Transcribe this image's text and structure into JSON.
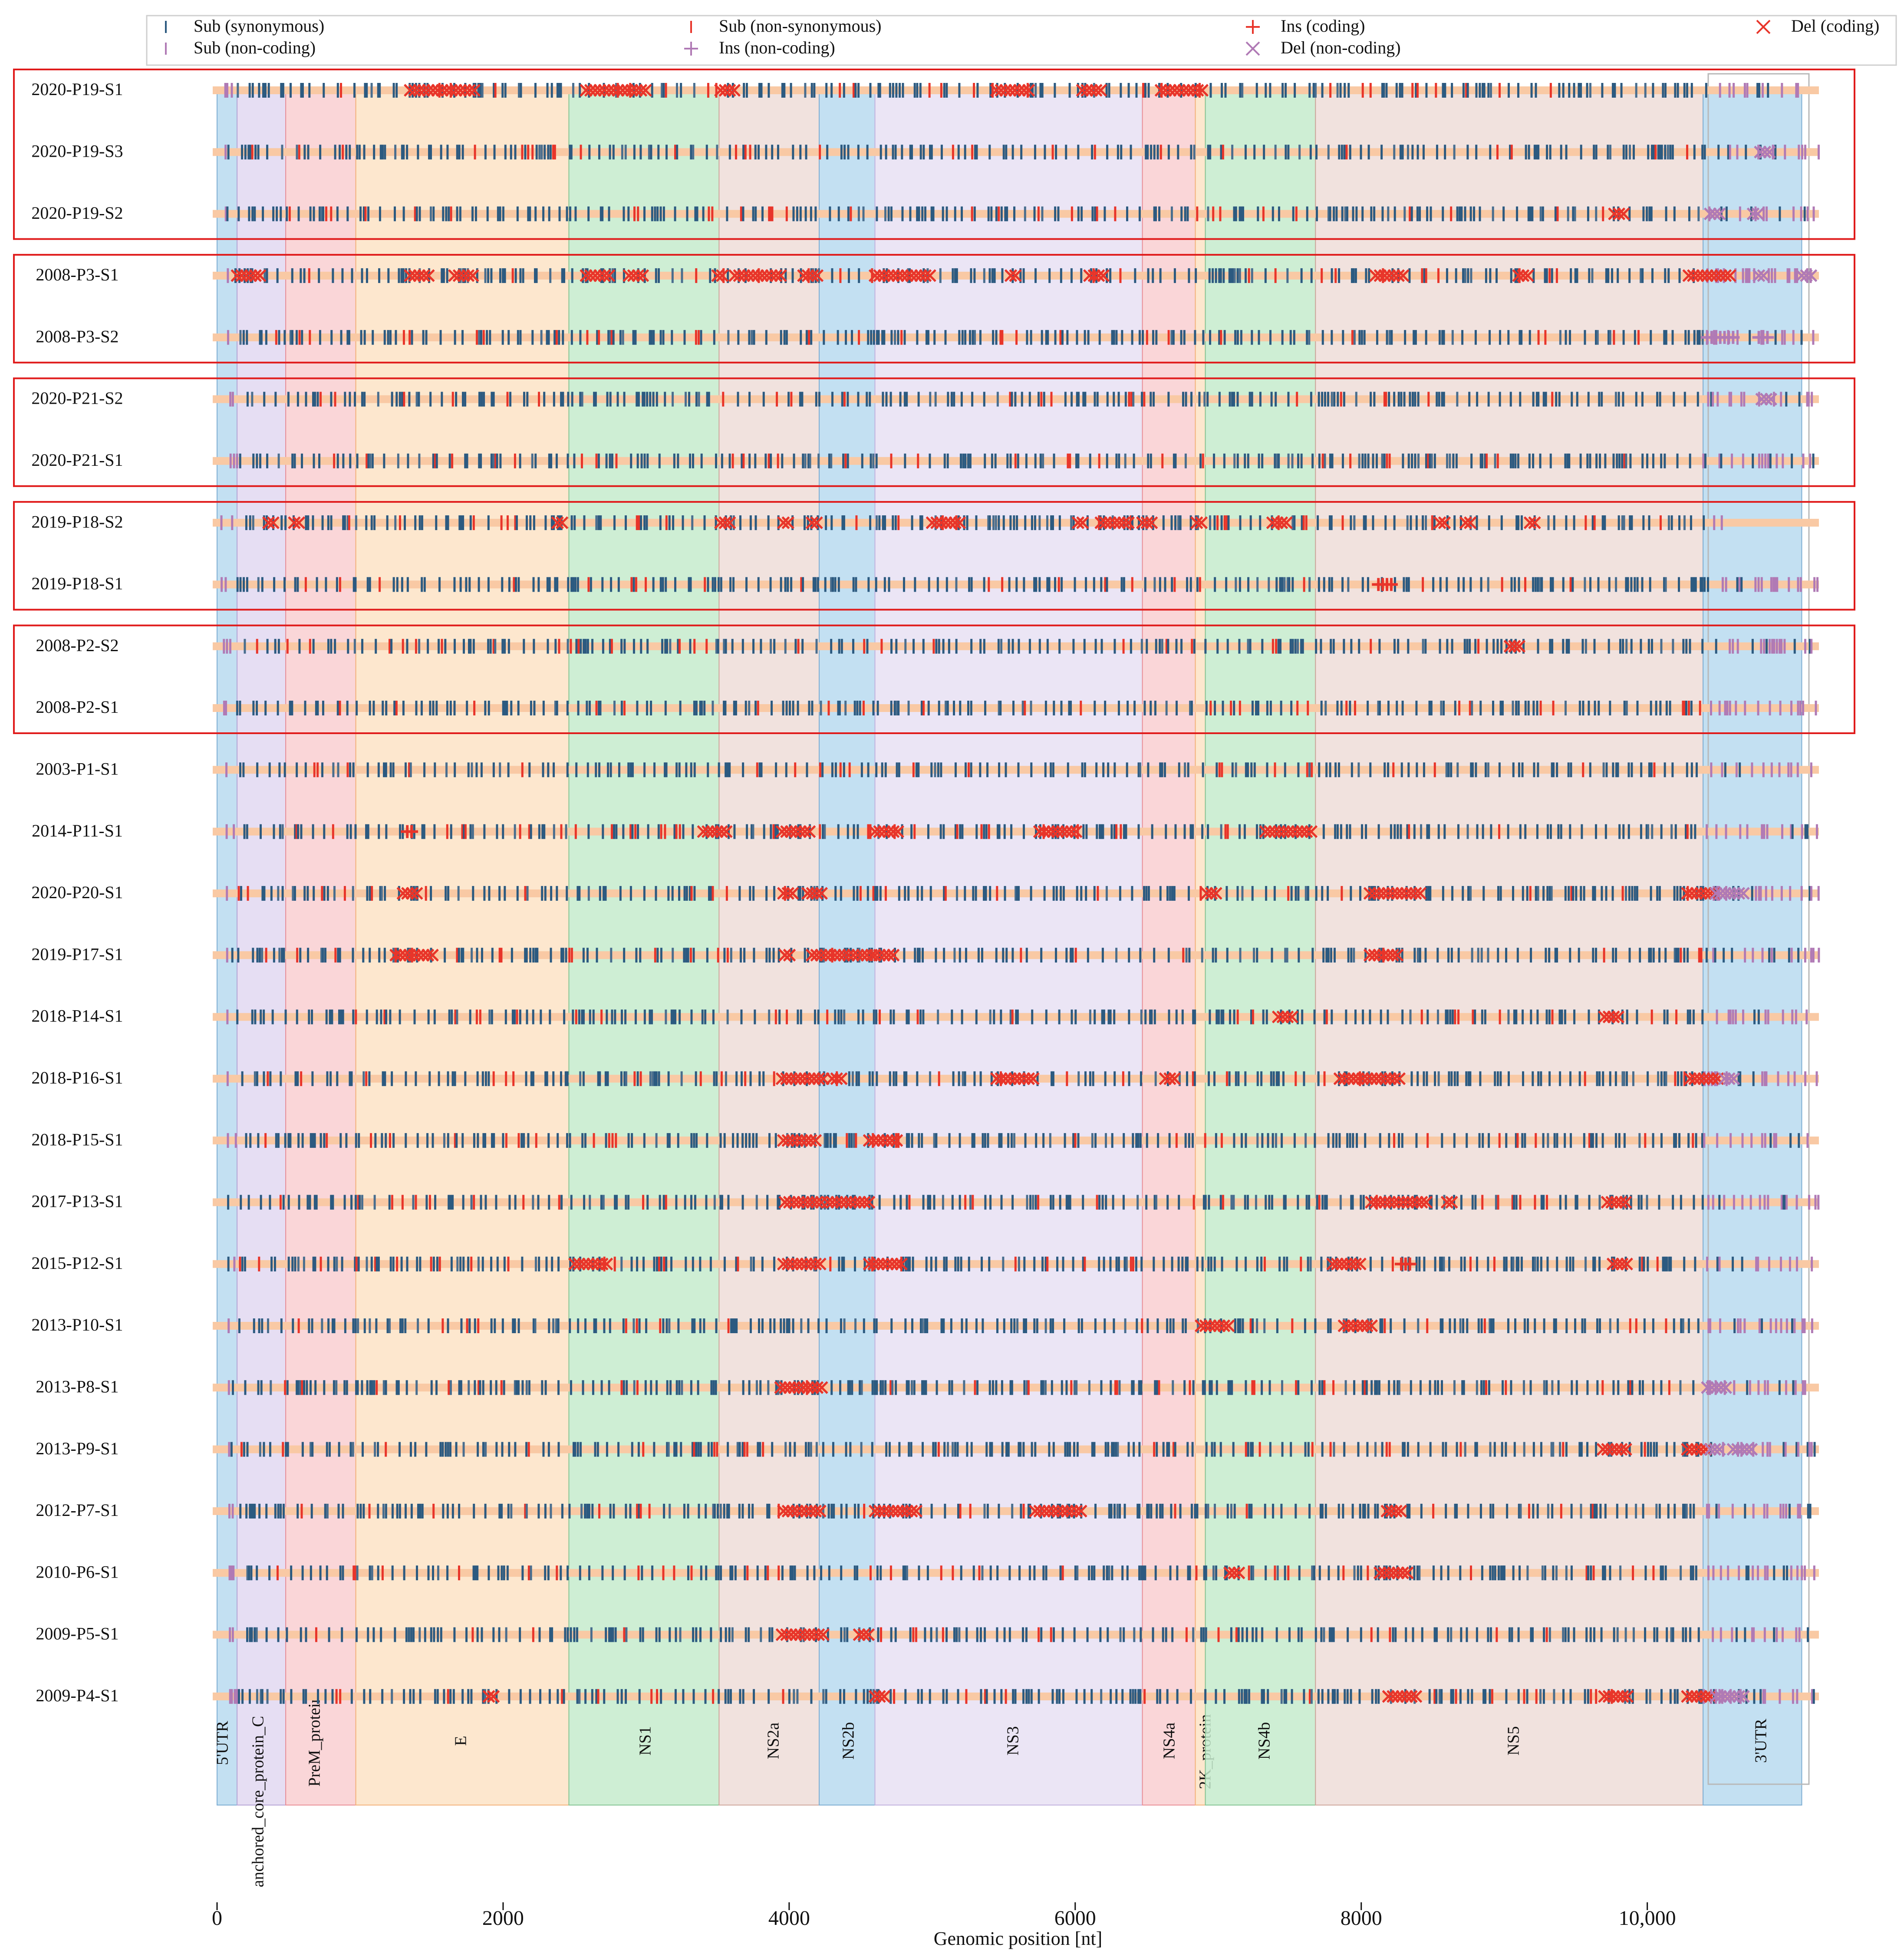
{
  "chart_data": {
    "type": "genome-variant-track-plot",
    "xlabel": "Genomic position [nt]",
    "xlim": [
      0,
      11200
    ],
    "x_ticks": [
      0,
      2000,
      4000,
      6000,
      8000,
      10000
    ],
    "x_tick_labels": [
      "0",
      "2000",
      "4000",
      "6000",
      "8000",
      "10,000"
    ],
    "legend": {
      "position": "top",
      "entries": [
        {
          "label": "Sub (synonymous)",
          "marker": "|",
          "color": "#2c5a80"
        },
        {
          "label": "Sub (non-synonymous)",
          "marker": "|",
          "color": "#e8352a"
        },
        {
          "label": "Ins (coding)",
          "marker": "+",
          "color": "#e8352a"
        },
        {
          "label": "Del (coding)",
          "marker": "x",
          "color": "#e8352a"
        },
        {
          "label": "Sub (non-coding)",
          "marker": "|",
          "color": "#b07ab5"
        },
        {
          "label": "Ins (non-coding)",
          "marker": "+",
          "color": "#b07ab5"
        },
        {
          "label": "Del (non-coding)",
          "marker": "x",
          "color": "#b07ab5"
        }
      ]
    },
    "regions": [
      {
        "name": "5'UTR",
        "start": 0,
        "end": 140,
        "color": "#b9daf0"
      },
      {
        "name": "anchored_core_protein_C",
        "start": 140,
        "end": 480,
        "color": "#e2d8f1"
      },
      {
        "name": "PreM_protein",
        "start": 480,
        "end": 970,
        "color": "#f9cfd1"
      },
      {
        "name": "E",
        "start": 970,
        "end": 2460,
        "color": "#fde3c6"
      },
      {
        "name": "NS1",
        "start": 2460,
        "end": 3510,
        "color": "#c6ebcc"
      },
      {
        "name": "NS2a",
        "start": 3510,
        "end": 4210,
        "color": "#efddd8"
      },
      {
        "name": "NS2b",
        "start": 4210,
        "end": 4600,
        "color": "#b9daf0"
      },
      {
        "name": "NS3",
        "start": 4600,
        "end": 6470,
        "color": "#e8e0f3"
      },
      {
        "name": "NS4a",
        "start": 6470,
        "end": 6840,
        "color": "#f9cfd1"
      },
      {
        "name": "2K_protein",
        "start": 6840,
        "end": 6910,
        "color": "#fde3c6"
      },
      {
        "name": "NS4b",
        "start": 6910,
        "end": 7680,
        "color": "#c6ebcc"
      },
      {
        "name": "NS5",
        "start": 7680,
        "end": 10390,
        "color": "#efddd8"
      },
      {
        "name": "3'UTR",
        "start": 10390,
        "end": 11080,
        "color": "#b9daf0"
      }
    ],
    "samples": [
      {
        "name": "2020-P19-S1",
        "group": 1,
        "end": 11100,
        "dels": [
          [
            1350,
            1800
          ],
          [
            2580,
            3000
          ],
          [
            3520,
            3620
          ],
          [
            5450,
            5700
          ],
          [
            6050,
            6200
          ],
          [
            6600,
            6900
          ]
        ],
        "ins": [],
        "seed": 11
      },
      {
        "name": "2020-P19-S3",
        "group": 1,
        "end": 11200,
        "dels": [
          [
            10790,
            10870
          ]
        ],
        "ins": [],
        "seed": 12
      },
      {
        "name": "2020-P19-S2",
        "group": 1,
        "end": 11200,
        "dels": [
          [
            9770,
            9850
          ],
          [
            10440,
            10520
          ],
          [
            10740,
            10800
          ]
        ],
        "ins": [],
        "seed": 13
      },
      {
        "name": "2008-P3-S1",
        "group": 2,
        "end": 11200,
        "dels": [
          [
            140,
            330
          ],
          [
            1350,
            1500
          ],
          [
            1660,
            1800
          ],
          [
            2580,
            2750
          ],
          [
            2880,
            3000
          ],
          [
            3500,
            3560
          ],
          [
            3620,
            3940
          ],
          [
            4100,
            4200
          ],
          [
            4600,
            5000
          ],
          [
            5550,
            5600
          ],
          [
            6100,
            6200
          ],
          [
            8100,
            8300
          ],
          [
            9100,
            9170
          ],
          [
            10290,
            10590
          ],
          [
            10780,
            10840
          ],
          [
            11080,
            11150
          ]
        ],
        "ins": [],
        "seed": 21
      },
      {
        "name": "2008-P3-S2",
        "group": 2,
        "end": 11200,
        "dels": [],
        "ins": [
          [
            10420,
            10620
          ],
          [
            10780,
            10840
          ]
        ],
        "seed": 22
      },
      {
        "name": "2020-P21-S2",
        "group": 3,
        "end": 11200,
        "dels": [
          [
            10800,
            10880
          ]
        ],
        "ins": [],
        "seed": 31
      },
      {
        "name": "2020-P21-S1",
        "group": 3,
        "end": 11200,
        "dels": [],
        "ins": [],
        "seed": 32
      },
      {
        "name": "2019-P18-S2",
        "group": 4,
        "end": 10550,
        "dels": [
          [
            360,
            420
          ],
          [
            540,
            580
          ],
          [
            2380,
            2430
          ],
          [
            3520,
            3600
          ],
          [
            3960,
            4010
          ],
          [
            4160,
            4220
          ],
          [
            5000,
            5200
          ],
          [
            6020,
            6080
          ],
          [
            6180,
            6400
          ],
          [
            6470,
            6560
          ],
          [
            6850,
            6900
          ],
          [
            7380,
            7480
          ],
          [
            8550,
            8600
          ],
          [
            8730,
            8790
          ],
          [
            9180,
            9230
          ]
        ],
        "ins": [],
        "seed": 41
      },
      {
        "name": "2019-P18-S1",
        "group": 4,
        "end": 11200,
        "dels": [],
        "ins": [
          [
            8120,
            8230
          ]
        ],
        "seed": 42
      },
      {
        "name": "2008-P2-S2",
        "group": 5,
        "end": 11200,
        "dels": [
          [
            9040,
            9120
          ]
        ],
        "ins": [],
        "seed": 51
      },
      {
        "name": "2008-P2-S1",
        "group": 5,
        "end": 11200,
        "dels": [],
        "ins": [],
        "seed": 52
      },
      {
        "name": "2003-P1-S1",
        "group": 0,
        "end": 11200,
        "dels": [],
        "ins": [],
        "seed": 61
      },
      {
        "name": "2014-P11-S1",
        "group": 0,
        "end": 11200,
        "dels": [
          [
            3400,
            3560
          ],
          [
            3950,
            4170
          ],
          [
            4600,
            4780
          ],
          [
            5750,
            6010
          ],
          [
            7330,
            7660
          ]
        ],
        "ins": [
          [
            1330,
            1370
          ]
        ],
        "seed": 62
      },
      {
        "name": "2020-P20-S1",
        "group": 0,
        "end": 11200,
        "dels": [
          [
            1300,
            1400
          ],
          [
            3960,
            4030
          ],
          [
            4130,
            4240
          ],
          [
            6920,
            6990
          ],
          [
            8060,
            8430
          ],
          [
            10280,
            10480
          ],
          [
            10480,
            10700
          ]
        ],
        "ins": [],
        "seed": 63
      },
      {
        "name": "2019-P17-S1",
        "group": 0,
        "end": 11200,
        "dels": [
          [
            1250,
            1510
          ],
          [
            3970,
            4030
          ],
          [
            4160,
            4580
          ],
          [
            4600,
            4740
          ],
          [
            8060,
            8270
          ]
        ],
        "ins": [],
        "seed": 64
      },
      {
        "name": "2018-P14-S1",
        "group": 0,
        "end": 11200,
        "dels": [
          [
            7420,
            7520
          ],
          [
            9700,
            9800
          ]
        ],
        "ins": [],
        "seed": 65
      },
      {
        "name": "2018-P16-S1",
        "group": 0,
        "end": 11200,
        "dels": [
          [
            3950,
            4250
          ],
          [
            4300,
            4380
          ],
          [
            5450,
            5720
          ],
          [
            6630,
            6700
          ],
          [
            7850,
            8270
          ],
          [
            10300,
            10500
          ],
          [
            10540,
            10620
          ]
        ],
        "ins": [],
        "seed": 66
      },
      {
        "name": "2018-P15-S1",
        "group": 0,
        "end": 11200,
        "dels": [
          [
            3960,
            4200
          ],
          [
            4560,
            4770
          ]
        ],
        "ins": [],
        "seed": 67
      },
      {
        "name": "2017-P13-S1",
        "group": 0,
        "end": 11200,
        "dels": [
          [
            3970,
            4240
          ],
          [
            4270,
            4580
          ],
          [
            8070,
            8480
          ],
          [
            8600,
            8660
          ],
          [
            9720,
            9850
          ]
        ],
        "ins": [],
        "seed": 68
      },
      {
        "name": "2015-P12-S1",
        "group": 0,
        "end": 11200,
        "dels": [
          [
            2500,
            2730
          ],
          [
            3960,
            4230
          ],
          [
            4560,
            4800
          ],
          [
            7800,
            8000
          ],
          [
            9760,
            9860
          ]
        ],
        "ins": [
          [
            8280,
            8340
          ]
        ],
        "seed": 69
      },
      {
        "name": "2013-P10-S1",
        "group": 0,
        "end": 11200,
        "dels": [
          [
            6880,
            7100
          ],
          [
            7880,
            8080
          ]
        ],
        "ins": [],
        "seed": 70
      },
      {
        "name": "2013-P8-S1",
        "group": 0,
        "end": 11200,
        "dels": [
          [
            3940,
            4240
          ],
          [
            10420,
            10560
          ]
        ],
        "ins": [],
        "seed": 71
      },
      {
        "name": "2013-P9-S1",
        "group": 0,
        "end": 11200,
        "dels": [
          [
            9690,
            9860
          ],
          [
            10280,
            10430
          ],
          [
            10440,
            10520
          ],
          [
            10600,
            10740
          ]
        ],
        "ins": [],
        "seed": 72
      },
      {
        "name": "2012-P7-S1",
        "group": 0,
        "end": 11200,
        "dels": [
          [
            3960,
            4240
          ],
          [
            4600,
            4900
          ],
          [
            5720,
            6060
          ],
          [
            8180,
            8300
          ]
        ],
        "ins": [],
        "seed": 73
      },
      {
        "name": "2010-P6-S1",
        "group": 0,
        "end": 11200,
        "dels": [
          [
            7080,
            7150
          ],
          [
            8130,
            8330
          ]
        ],
        "ins": [],
        "seed": 74
      },
      {
        "name": "2009-P5-S1",
        "group": 0,
        "end": 11200,
        "dels": [
          [
            3950,
            4240
          ],
          [
            4490,
            4560
          ]
        ],
        "ins": [],
        "seed": 75
      },
      {
        "name": "2009-P4-S1",
        "group": 0,
        "end": 11200,
        "dels": [
          [
            1900,
            1960
          ],
          [
            4600,
            4680
          ],
          [
            8190,
            8400
          ],
          [
            9700,
            9870
          ],
          [
            10280,
            10450
          ],
          [
            10480,
            10700
          ]
        ],
        "ins": [],
        "seed": 76
      }
    ]
  }
}
